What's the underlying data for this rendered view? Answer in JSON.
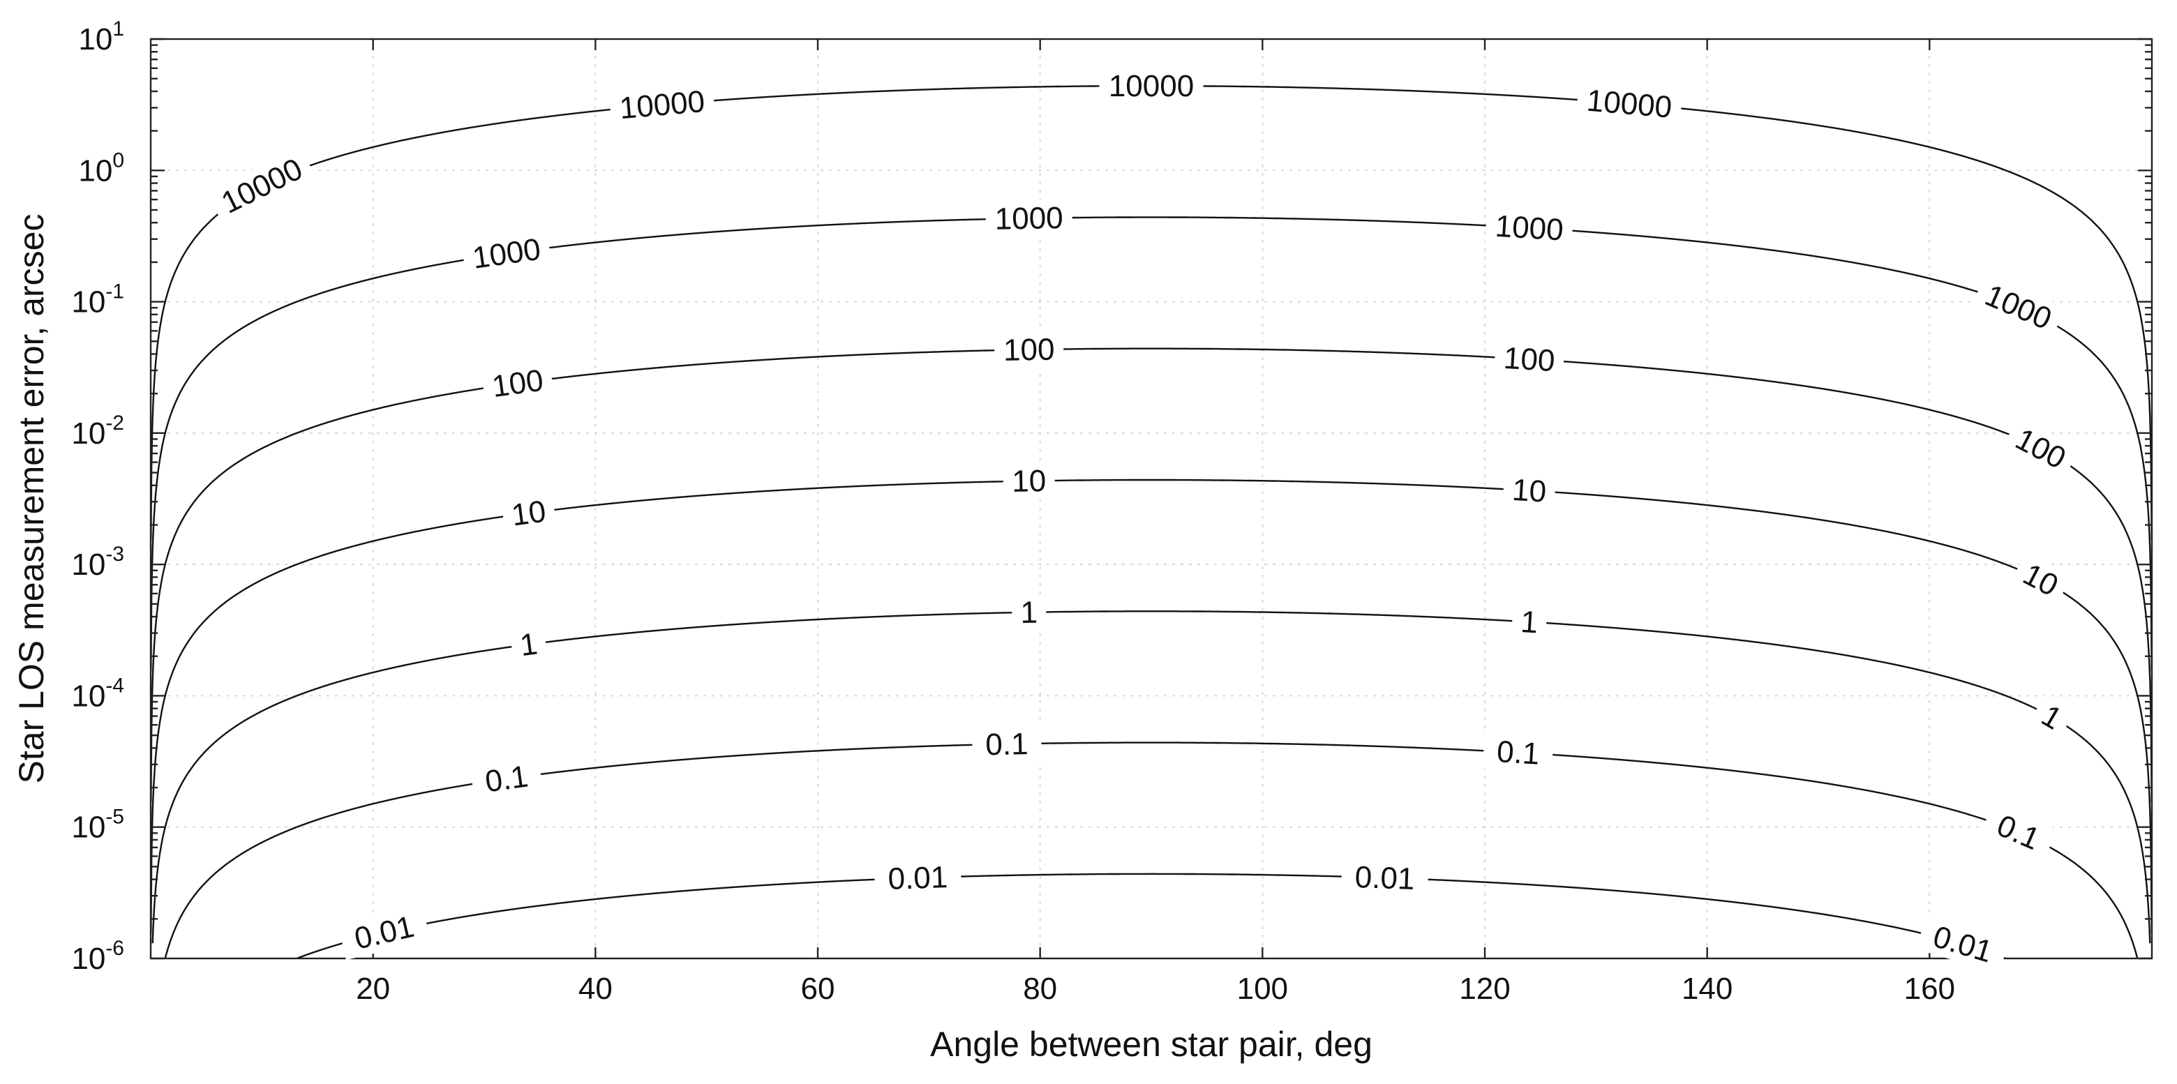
{
  "chart_data": {
    "type": "contour",
    "title": "",
    "xlabel": "Angle between star pair, deg",
    "ylabel": "Star LOS measurement error, arcsec",
    "xlim": [
      0,
      180
    ],
    "ylim": [
      1e-06,
      10
    ],
    "yscale": "log",
    "grid": true,
    "x_ticks": [
      20,
      40,
      60,
      80,
      100,
      120,
      140,
      160
    ],
    "y_ticks": [
      {
        "base": "10",
        "exp": "-6",
        "value": 1e-06
      },
      {
        "base": "10",
        "exp": "-5",
        "value": 1e-05
      },
      {
        "base": "10",
        "exp": "-4",
        "value": 0.0001
      },
      {
        "base": "10",
        "exp": "-3",
        "value": 0.001
      },
      {
        "base": "10",
        "exp": "-2",
        "value": 0.01
      },
      {
        "base": "10",
        "exp": "-1",
        "value": 0.1
      },
      {
        "base": "10",
        "exp": "0",
        "value": 1
      },
      {
        "base": "10",
        "exp": "1",
        "value": 10
      }
    ],
    "contour_relation": "error = level * 4.4e-4 * sin(angle)",
    "peak_error_per_unit_level": 0.00044,
    "levels": [
      {
        "level": 0.01,
        "label": "0.01",
        "label_x": [
          21,
          69,
          111,
          163
        ]
      },
      {
        "level": 0.1,
        "label": "0.1",
        "label_x": [
          32,
          77,
          123,
          168
        ]
      },
      {
        "level": 1,
        "label": "1",
        "label_x": [
          34,
          79,
          124,
          171
        ]
      },
      {
        "level": 10,
        "label": "10",
        "label_x": [
          34,
          79,
          124,
          170
        ]
      },
      {
        "level": 100,
        "label": "100",
        "label_x": [
          33,
          79,
          124,
          170
        ]
      },
      {
        "level": 1000,
        "label": "1000",
        "label_x": [
          32,
          79,
          124,
          168
        ]
      },
      {
        "level": 10000,
        "label": "10000",
        "label_x": [
          10,
          46,
          90,
          133
        ]
      }
    ]
  }
}
